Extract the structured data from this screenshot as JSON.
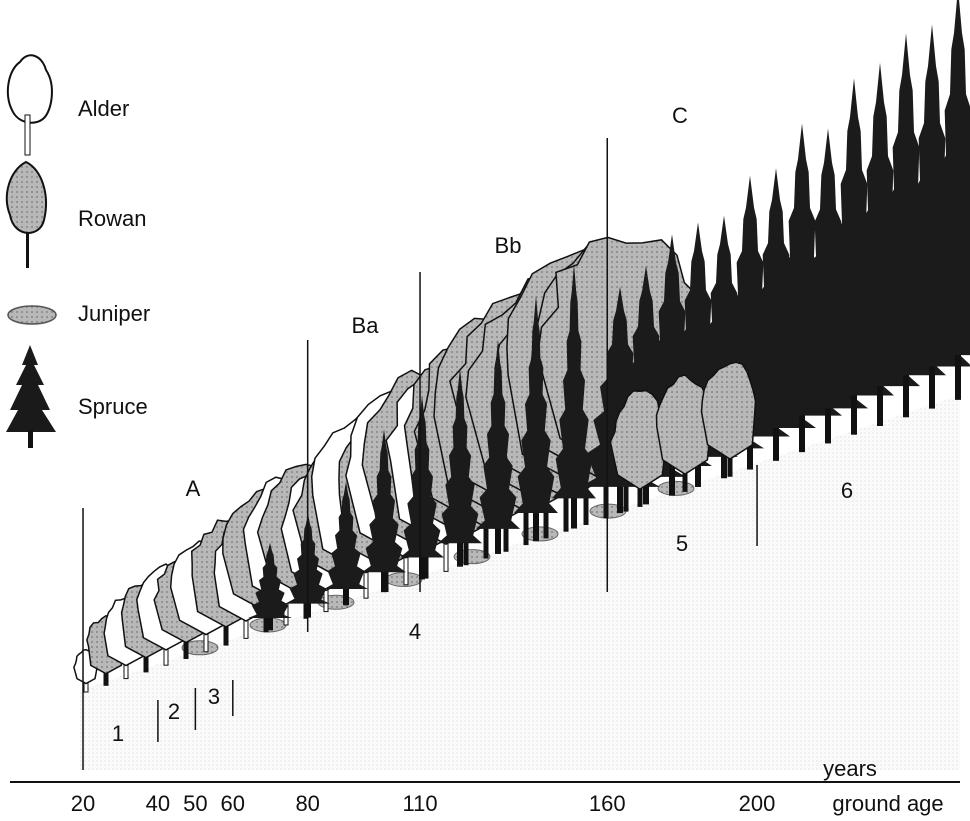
{
  "legend": [
    {
      "label": "Alder"
    },
    {
      "label": "Rowan"
    },
    {
      "label": "Juniper"
    },
    {
      "label": "Spruce"
    }
  ],
  "stages": [
    "A",
    "Ba",
    "Bb",
    "C"
  ],
  "zones": [
    "1",
    "2",
    "3",
    "4",
    "5",
    "6"
  ],
  "axis": {
    "ticks": [
      20,
      40,
      50,
      60,
      80,
      110,
      160,
      200
    ],
    "xlim": [
      0.5,
      254.2
    ],
    "unit": "years",
    "label": "ground age"
  }
}
